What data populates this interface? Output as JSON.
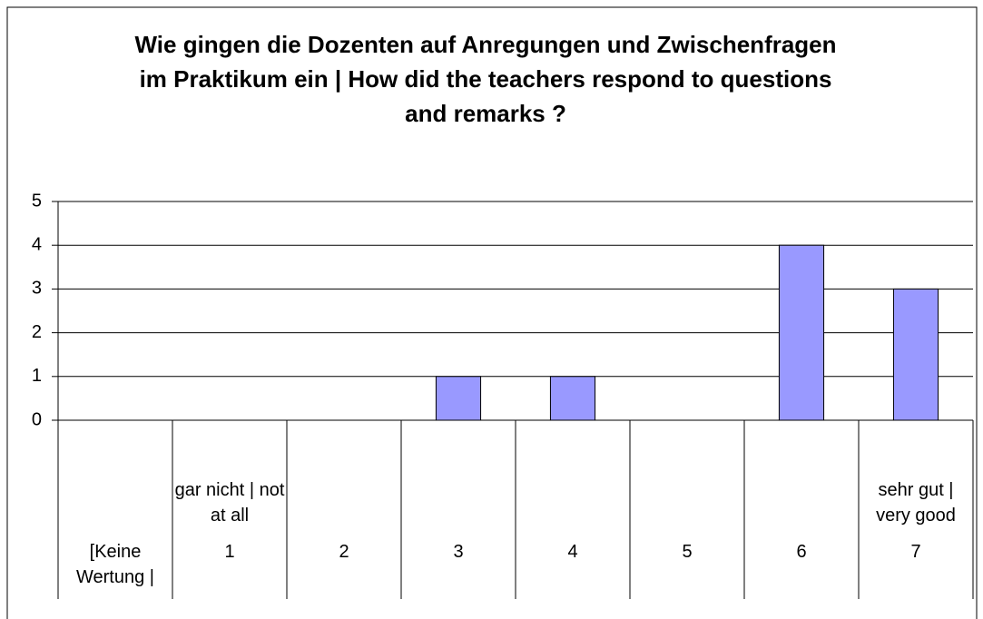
{
  "chart_data": {
    "type": "bar",
    "title": "Wie gingen die Dozenten auf Anregungen und Zwischenfragen im Praktikum ein | How did the teachers respond to questions and remarks ?",
    "categories": [
      "[Keine Wertung |",
      "1",
      "2",
      "3",
      "4",
      "5",
      "6",
      "7"
    ],
    "category_notes": [
      null,
      "gar nicht | not at all",
      null,
      null,
      null,
      null,
      null,
      "sehr gut | very good"
    ],
    "values": [
      0,
      0,
      0,
      1,
      1,
      0,
      4,
      3
    ],
    "color": "#9999ff",
    "ylim": [
      0,
      5
    ],
    "yticks": [
      0,
      1,
      2,
      3,
      4,
      5
    ],
    "grid": true
  }
}
